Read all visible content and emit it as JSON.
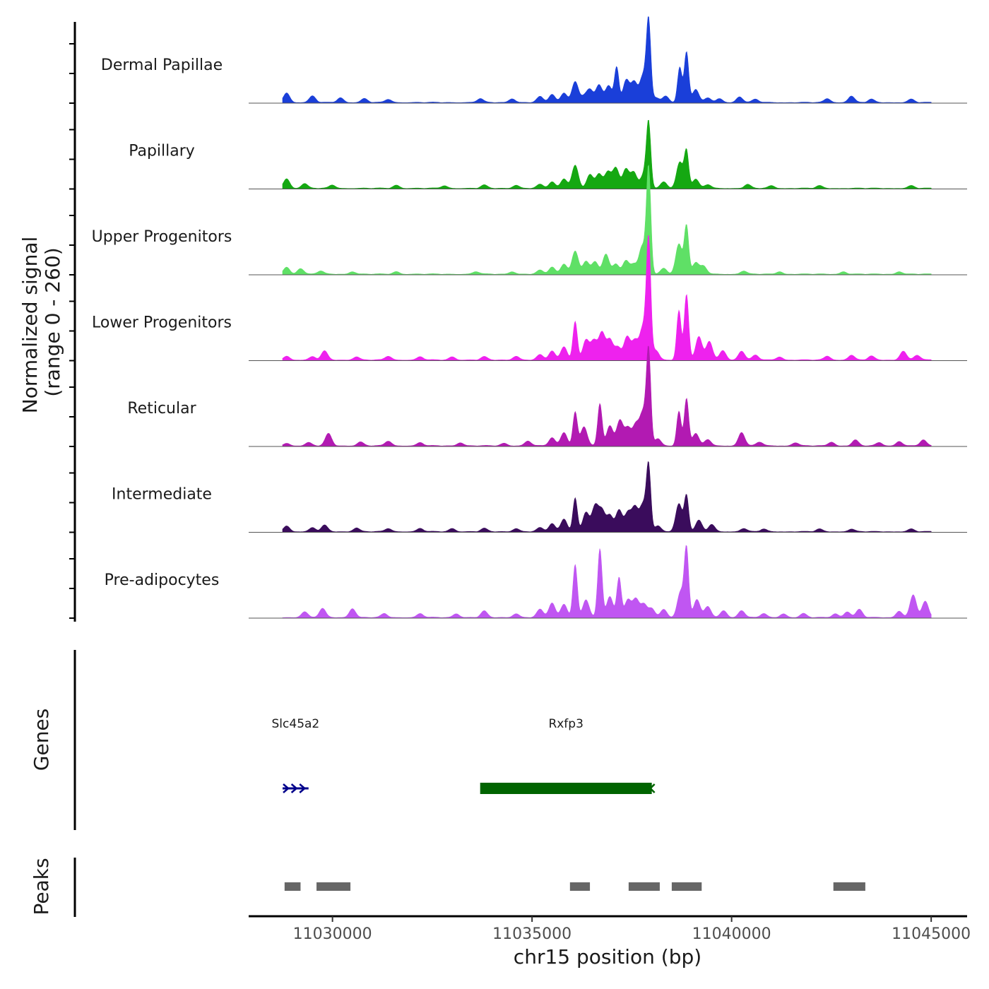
{
  "chart_data": {
    "type": "area",
    "title": "",
    "ylabel_line1": "Normalized signal",
    "ylabel_line2": "(range 0 - 260)",
    "ylim": [
      0,
      260
    ],
    "xlabel": "chr15 position (bp)",
    "xlim": [
      11027900,
      11045900
    ],
    "xticks": [
      11030000,
      11035000,
      11040000,
      11045000
    ],
    "xtick_labels": [
      "11030000",
      "11035000",
      "11040000",
      "11045000"
    ],
    "genes_label": "Genes",
    "peaks_label": "Peaks",
    "tracks": [
      {
        "name": "Dermal Papillae",
        "color": "#1a3fd9",
        "peaks": [
          [
            11028850,
            30
          ],
          [
            11029500,
            20
          ],
          [
            11030200,
            15
          ],
          [
            11030800,
            12
          ],
          [
            11031400,
            10
          ],
          [
            11033700,
            12
          ],
          [
            11034500,
            12
          ],
          [
            11035200,
            18
          ],
          [
            11035500,
            25
          ],
          [
            11035800,
            30
          ],
          [
            11036080,
            65
          ],
          [
            11036300,
            18
          ],
          [
            11036450,
            38
          ],
          [
            11036680,
            55
          ],
          [
            11036920,
            52
          ],
          [
            11037120,
            110
          ],
          [
            11037360,
            70
          ],
          [
            11037560,
            64
          ],
          [
            11037780,
            82
          ],
          [
            11037920,
            250
          ],
          [
            11038100,
            15
          ],
          [
            11038350,
            20
          ],
          [
            11038700,
            110
          ],
          [
            11038870,
            158
          ],
          [
            11039100,
            40
          ],
          [
            11039400,
            15
          ],
          [
            11039700,
            12
          ],
          [
            11040200,
            18
          ],
          [
            11040600,
            10
          ],
          [
            11042400,
            12
          ],
          [
            11043000,
            20
          ],
          [
            11043500,
            10
          ],
          [
            11044500,
            10
          ]
        ]
      },
      {
        "name": "Papillary",
        "color": "#15a812",
        "peaks": [
          [
            11028850,
            30
          ],
          [
            11029300,
            15
          ],
          [
            11030000,
            10
          ],
          [
            11031600,
            10
          ],
          [
            11032800,
            8
          ],
          [
            11033800,
            10
          ],
          [
            11034600,
            10
          ],
          [
            11035200,
            12
          ],
          [
            11035500,
            20
          ],
          [
            11035800,
            30
          ],
          [
            11036080,
            72
          ],
          [
            11036450,
            42
          ],
          [
            11036680,
            45
          ],
          [
            11036900,
            50
          ],
          [
            11037100,
            64
          ],
          [
            11037350,
            60
          ],
          [
            11037550,
            50
          ],
          [
            11037800,
            42
          ],
          [
            11037920,
            200
          ],
          [
            11038300,
            20
          ],
          [
            11038700,
            82
          ],
          [
            11038870,
            115
          ],
          [
            11039100,
            28
          ],
          [
            11039400,
            12
          ],
          [
            11040400,
            12
          ],
          [
            11041000,
            8
          ],
          [
            11042200,
            8
          ],
          [
            11044500,
            8
          ]
        ]
      },
      {
        "name": "Upper Progenitors",
        "color": "#5fe066",
        "peaks": [
          [
            11028850,
            22
          ],
          [
            11029200,
            18
          ],
          [
            11029700,
            10
          ],
          [
            11030500,
            8
          ],
          [
            11031600,
            8
          ],
          [
            11033600,
            8
          ],
          [
            11034500,
            8
          ],
          [
            11035200,
            12
          ],
          [
            11035500,
            22
          ],
          [
            11035800,
            32
          ],
          [
            11036080,
            72
          ],
          [
            11036350,
            40
          ],
          [
            11036580,
            38
          ],
          [
            11036850,
            62
          ],
          [
            11037100,
            32
          ],
          [
            11037350,
            42
          ],
          [
            11037550,
            30
          ],
          [
            11037760,
            85
          ],
          [
            11037920,
            330
          ],
          [
            11038300,
            18
          ],
          [
            11038680,
            95
          ],
          [
            11038870,
            150
          ],
          [
            11039100,
            35
          ],
          [
            11039300,
            25
          ],
          [
            11040300,
            10
          ],
          [
            11041200,
            8
          ],
          [
            11042800,
            8
          ],
          [
            11044200,
            8
          ]
        ]
      },
      {
        "name": "Lower Progenitors",
        "color": "#ee22ee",
        "peaks": [
          [
            11028850,
            12
          ],
          [
            11029500,
            10
          ],
          [
            11029800,
            28
          ],
          [
            11030600,
            10
          ],
          [
            11031400,
            12
          ],
          [
            11032200,
            10
          ],
          [
            11033000,
            10
          ],
          [
            11033800,
            10
          ],
          [
            11034600,
            12
          ],
          [
            11035200,
            16
          ],
          [
            11035500,
            28
          ],
          [
            11035800,
            42
          ],
          [
            11036080,
            120
          ],
          [
            11036350,
            62
          ],
          [
            11036550,
            58
          ],
          [
            11036750,
            85
          ],
          [
            11036950,
            62
          ],
          [
            11037150,
            40
          ],
          [
            11037380,
            72
          ],
          [
            11037580,
            60
          ],
          [
            11037780,
            100
          ],
          [
            11037920,
            370
          ],
          [
            11038100,
            30
          ],
          [
            11038680,
            155
          ],
          [
            11038870,
            205
          ],
          [
            11039180,
            72
          ],
          [
            11039440,
            58
          ],
          [
            11039780,
            30
          ],
          [
            11040250,
            28
          ],
          [
            11040600,
            15
          ],
          [
            11041200,
            10
          ],
          [
            11042400,
            12
          ],
          [
            11043000,
            15
          ],
          [
            11043500,
            12
          ],
          [
            11044300,
            28
          ],
          [
            11044650,
            15
          ]
        ]
      },
      {
        "name": "Reticular",
        "color": "#b21ab2",
        "peaks": [
          [
            11028850,
            8
          ],
          [
            11029400,
            10
          ],
          [
            11029900,
            38
          ],
          [
            11030700,
            12
          ],
          [
            11031400,
            15
          ],
          [
            11032200,
            10
          ],
          [
            11033200,
            10
          ],
          [
            11034300,
            8
          ],
          [
            11034900,
            15
          ],
          [
            11035500,
            25
          ],
          [
            11035800,
            42
          ],
          [
            11036080,
            105
          ],
          [
            11036300,
            60
          ],
          [
            11036700,
            132
          ],
          [
            11036950,
            62
          ],
          [
            11037200,
            80
          ],
          [
            11037400,
            55
          ],
          [
            11037600,
            65
          ],
          [
            11037780,
            100
          ],
          [
            11037920,
            290
          ],
          [
            11038150,
            22
          ],
          [
            11038680,
            108
          ],
          [
            11038870,
            148
          ],
          [
            11039100,
            38
          ],
          [
            11039400,
            20
          ],
          [
            11040250,
            42
          ],
          [
            11040700,
            12
          ],
          [
            11041600,
            10
          ],
          [
            11042500,
            12
          ],
          [
            11043100,
            18
          ],
          [
            11043700,
            10
          ],
          [
            11044200,
            14
          ],
          [
            11044800,
            18
          ]
        ]
      },
      {
        "name": "Intermediate",
        "color": "#3a0c5c",
        "peaks": [
          [
            11028850,
            18
          ],
          [
            11029500,
            12
          ],
          [
            11029800,
            20
          ],
          [
            11030600,
            12
          ],
          [
            11031400,
            10
          ],
          [
            11032200,
            10
          ],
          [
            11033000,
            10
          ],
          [
            11033800,
            10
          ],
          [
            11034600,
            10
          ],
          [
            11035200,
            12
          ],
          [
            11035500,
            25
          ],
          [
            11035800,
            40
          ],
          [
            11036080,
            105
          ],
          [
            11036350,
            60
          ],
          [
            11036580,
            78
          ],
          [
            11036750,
            65
          ],
          [
            11036950,
            50
          ],
          [
            11037180,
            68
          ],
          [
            11037400,
            58
          ],
          [
            11037580,
            75
          ],
          [
            11037780,
            82
          ],
          [
            11037920,
            200
          ],
          [
            11038150,
            18
          ],
          [
            11038680,
            88
          ],
          [
            11038870,
            112
          ],
          [
            11039180,
            35
          ],
          [
            11039500,
            22
          ],
          [
            11040300,
            10
          ],
          [
            11040800,
            8
          ],
          [
            11042200,
            8
          ],
          [
            11043000,
            8
          ],
          [
            11044500,
            8
          ]
        ]
      },
      {
        "name": "Pre-adipocytes",
        "color": "#c056f2",
        "peaks": [
          [
            11029300,
            18
          ],
          [
            11029750,
            28
          ],
          [
            11030500,
            28
          ],
          [
            11031300,
            12
          ],
          [
            11032200,
            12
          ],
          [
            11033100,
            12
          ],
          [
            11033800,
            20
          ],
          [
            11034600,
            12
          ],
          [
            11035200,
            25
          ],
          [
            11035500,
            45
          ],
          [
            11035800,
            42
          ],
          [
            11036080,
            165
          ],
          [
            11036350,
            55
          ],
          [
            11036700,
            215
          ],
          [
            11036950,
            65
          ],
          [
            11037180,
            125
          ],
          [
            11037400,
            55
          ],
          [
            11037600,
            58
          ],
          [
            11037800,
            40
          ],
          [
            11038000,
            28
          ],
          [
            11038300,
            25
          ],
          [
            11038720,
            80
          ],
          [
            11038870,
            212
          ],
          [
            11039130,
            55
          ],
          [
            11039400,
            35
          ],
          [
            11039800,
            22
          ],
          [
            11040250,
            22
          ],
          [
            11040800,
            12
          ],
          [
            11041300,
            12
          ],
          [
            11041800,
            12
          ],
          [
            11042600,
            12
          ],
          [
            11042900,
            18
          ],
          [
            11043200,
            25
          ],
          [
            11044200,
            20
          ],
          [
            11044550,
            70
          ],
          [
            11044850,
            50
          ]
        ]
      }
    ],
    "genes": [
      {
        "name": "Slc45a2",
        "start": 11028750,
        "end": 11029400,
        "strand": "+",
        "color": "#00008b"
      },
      {
        "name": "Rxfp3",
        "start": 11033700,
        "end": 11038000,
        "strand": "-",
        "color": "#006400"
      }
    ],
    "peak_regions": [
      [
        11028800,
        11029200
      ],
      [
        11029600,
        11030450
      ],
      [
        11035950,
        11036450
      ],
      [
        11037420,
        11038200
      ],
      [
        11038500,
        11039250
      ],
      [
        11042550,
        11043350
      ]
    ],
    "peak_color": "#666666"
  }
}
